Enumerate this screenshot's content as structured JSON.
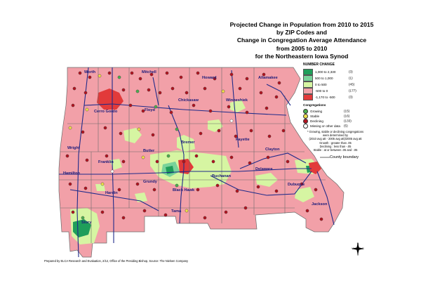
{
  "title_lines": [
    "Projected Change in Population from 2010 to 2015",
    "by ZIP Codes and",
    "Change in Congregation Average Attendance",
    "from 2005 to 2010",
    "for the Northeastern Iowa Synod"
  ],
  "legend": {
    "number_change_title": "NUMBER CHANGE",
    "classes": [
      {
        "range": "1,000 to 2,330",
        "count": "(3)",
        "color": "#1f9e5a"
      },
      {
        "range": "500 to 1,000",
        "count": "(1)",
        "color": "#79d39a"
      },
      {
        "range": "0 to 500",
        "count": "(45)",
        "color": "#d6f5a2"
      },
      {
        "range": "-500 to 0",
        "count": "(177)",
        "color": "#f2a0a8"
      },
      {
        "range": "-1,170 to -500",
        "count": "(3)",
        "color": "#e23a3a"
      }
    ],
    "congregations_title": "Congregations",
    "congregation_types": [
      {
        "label": "Growing",
        "count": "(15)",
        "color": "#4caf50"
      },
      {
        "label": "Stable",
        "count": "(16)",
        "color": "#f0e04a"
      },
      {
        "label": "Declining",
        "count": "(133)",
        "color": "#b3121f"
      },
      {
        "label": "Missing or other data",
        "count": "(5)",
        "color": "#ffffff"
      }
    ],
    "note": [
      "* Growing, stable or declining congregations",
      "were determined by",
      "(2010 avg att - 2005 avg att)/2005 avg att",
      "Growth : greater than .05",
      "Declining : less than -.05",
      "Stable : at or between .05 and -.05"
    ]
  },
  "county_boundary_label": "County boundary",
  "counties": {
    "worth": "Worth",
    "mitchell": "Mitchell",
    "howard": "Howard",
    "allamakee": "Allamakee",
    "cerro_gordo": "Cerro Gordo",
    "floyd": "Floyd",
    "chickasaw": "Chickasaw",
    "winneshiek": "Winneshiek",
    "fayette": "Fayette",
    "wright": "Wright",
    "butler": "Butler",
    "bremer": "Bremer",
    "clayton": "Clayton",
    "franklin": "Franklin",
    "hamilton": "Hamilton",
    "buchanan": "Buchanan",
    "delaware": "Delaware",
    "grundy": "Grundy",
    "black_hawk": "Black Hawk",
    "hardin": "Hardin",
    "dubuque": "Dubuque",
    "tama": "Tama",
    "story": "Story",
    "jackson": "Jackson"
  },
  "compass": {
    "n": "N",
    "s": "S",
    "e": "E",
    "w": "W"
  },
  "credit": "Prepared by ELCA Research and Evaluation, 2/12, Office of the Presiding Bishop, Source: The Nielsen Company",
  "colors": {
    "decline": "#f2a0a8",
    "strong_decline": "#e23a3a",
    "small_growth": "#d6f5a2",
    "medium_growth": "#79d39a",
    "large_growth": "#1f9e5a",
    "roads": "#1f2a8a",
    "county_lines": "#6b6b6b"
  }
}
